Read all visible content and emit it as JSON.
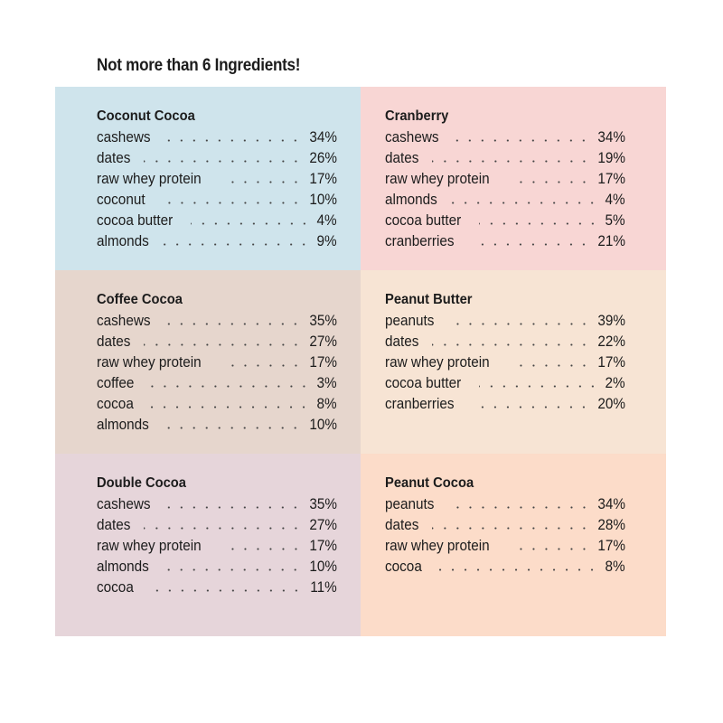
{
  "heading": "Not more than 6 Ingredients!",
  "cards": [
    {
      "title": "Coconut Cocoa",
      "color": "#cfe4ec",
      "ingredients": [
        {
          "name": "cashews",
          "pct": "34%"
        },
        {
          "name": "dates",
          "pct": "26%"
        },
        {
          "name": "raw whey protein",
          "pct": "17%"
        },
        {
          "name": "coconut",
          "pct": "10%"
        },
        {
          "name": "cocoa butter",
          "pct": "4%"
        },
        {
          "name": "almonds",
          "pct": "9%"
        }
      ]
    },
    {
      "title": "Cranberry",
      "color": "#f8d6d4",
      "ingredients": [
        {
          "name": "cashews",
          "pct": "34%"
        },
        {
          "name": "dates",
          "pct": "19%"
        },
        {
          "name": "raw whey protein",
          "pct": "17%"
        },
        {
          "name": "almonds",
          "pct": "4%"
        },
        {
          "name": "cocoa butter",
          "pct": "5%"
        },
        {
          "name": "cranberries",
          "pct": "21%"
        }
      ]
    },
    {
      "title": "Coffee Cocoa",
      "color": "#e6d6cd",
      "ingredients": [
        {
          "name": "cashews",
          "pct": "35%"
        },
        {
          "name": "dates",
          "pct": "27%"
        },
        {
          "name": "raw whey protein",
          "pct": "17%"
        },
        {
          "name": "coffee",
          "pct": "3%"
        },
        {
          "name": "cocoa",
          "pct": "8%"
        },
        {
          "name": "almonds",
          "pct": "10%"
        }
      ]
    },
    {
      "title": "Peanut Butter",
      "color": "#f7e4d4",
      "ingredients": [
        {
          "name": "peanuts",
          "pct": "39%"
        },
        {
          "name": "dates",
          "pct": "22%"
        },
        {
          "name": "raw whey protein",
          "pct": "17%"
        },
        {
          "name": "cocoa butter",
          "pct": "2%"
        },
        {
          "name": "cranberries",
          "pct": "20%"
        }
      ]
    },
    {
      "title": "Double Cocoa",
      "color": "#e6d5da",
      "ingredients": [
        {
          "name": "cashews",
          "pct": "35%"
        },
        {
          "name": "dates",
          "pct": "27%"
        },
        {
          "name": "raw whey protein",
          "pct": "17%"
        },
        {
          "name": "almonds",
          "pct": "10%"
        },
        {
          "name": "cocoa",
          "pct": "11%"
        }
      ]
    },
    {
      "title": "Peanut Cocoa",
      "color": "#fcdcc9",
      "ingredients": [
        {
          "name": "peanuts",
          "pct": "34%"
        },
        {
          "name": "dates",
          "pct": "28%"
        },
        {
          "name": "raw whey protein",
          "pct": "17%"
        },
        {
          "name": "cocoa",
          "pct": "8%"
        }
      ]
    }
  ]
}
